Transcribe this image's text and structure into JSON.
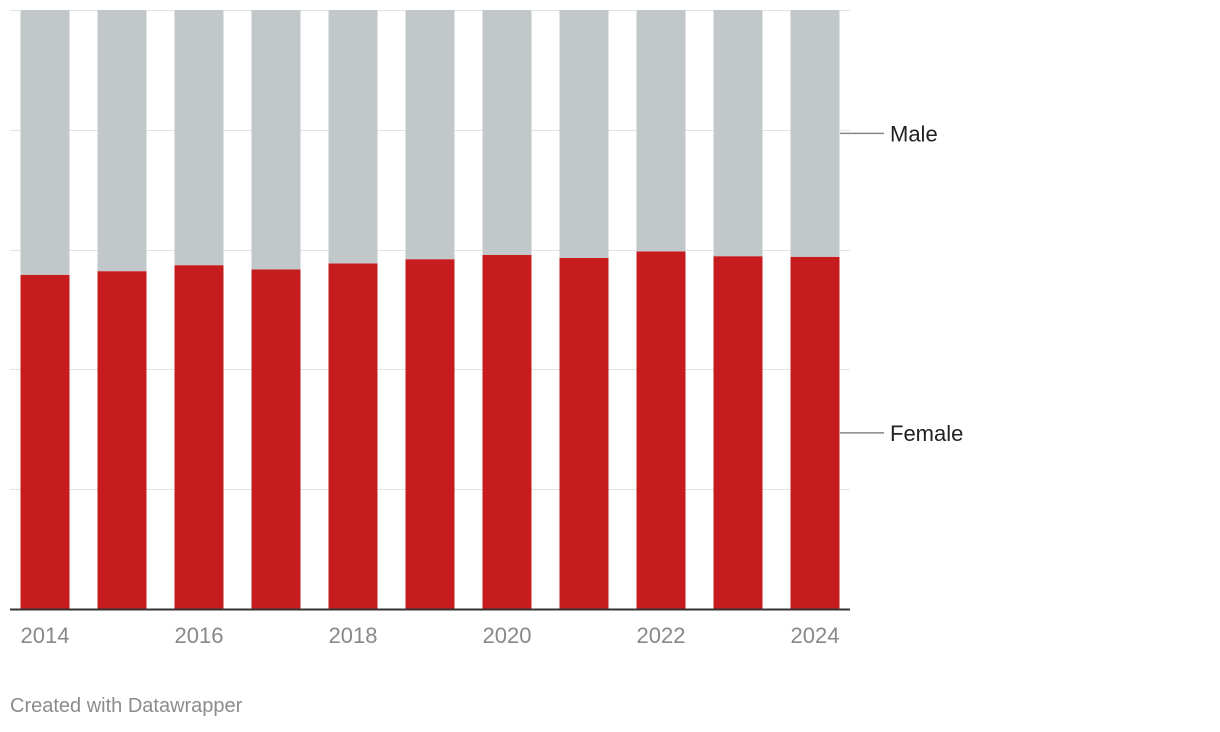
{
  "chart_data": {
    "type": "bar",
    "stacked": true,
    "normalized": true,
    "categories": [
      "2014",
      "2015",
      "2016",
      "2017",
      "2018",
      "2019",
      "2020",
      "2021",
      "2022",
      "2023",
      "2024"
    ],
    "x_tick_labels": [
      "2014",
      "2016",
      "2018",
      "2020",
      "2022",
      "2024"
    ],
    "series": [
      {
        "name": "Female",
        "color": "#c71c1e",
        "values": [
          55.8,
          56.4,
          57.4,
          56.7,
          57.7,
          58.4,
          59.1,
          58.6,
          59.7,
          58.9,
          58.8
        ]
      },
      {
        "name": "Male",
        "color": "#c2c7c9",
        "values": [
          44.2,
          43.6,
          42.6,
          43.3,
          42.3,
          41.6,
          40.9,
          41.4,
          40.3,
          41.1,
          41.2
        ]
      }
    ],
    "ylim": [
      0,
      100
    ],
    "grid": true,
    "legend": "direct labels on right"
  },
  "footer": {
    "credit": "Created with Datawrapper"
  }
}
